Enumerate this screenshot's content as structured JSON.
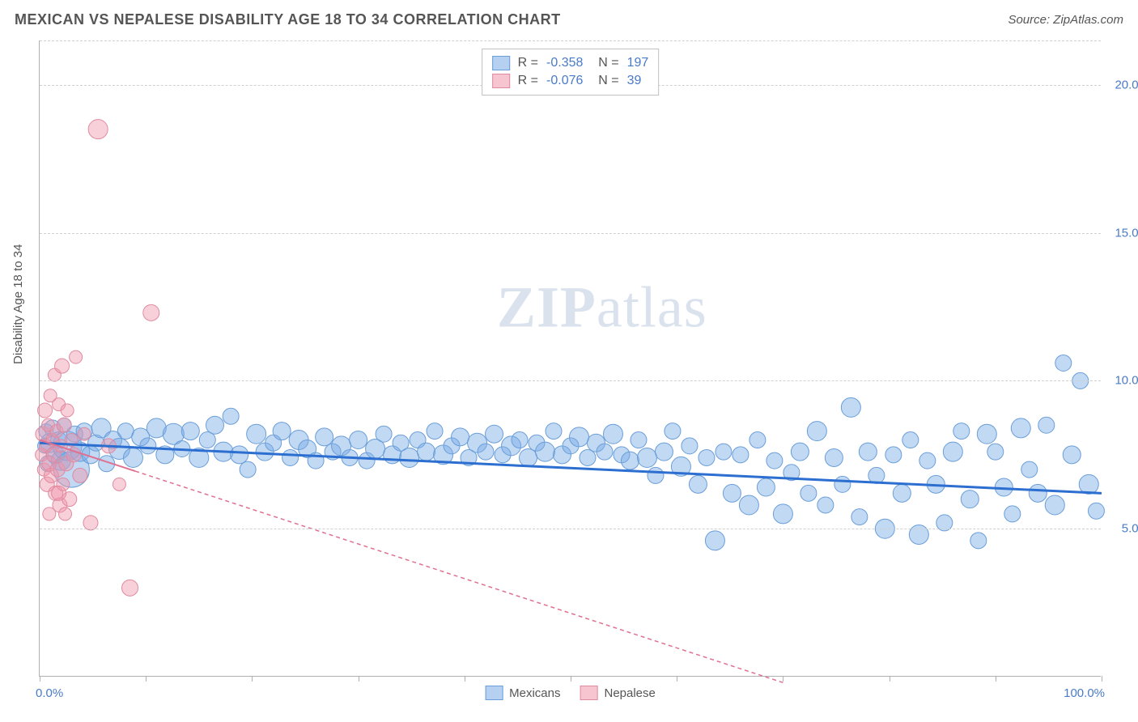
{
  "header": {
    "title": "MEXICAN VS NEPALESE DISABILITY AGE 18 TO 34 CORRELATION CHART",
    "source": "Source: ZipAtlas.com"
  },
  "watermark": {
    "part1": "ZIP",
    "part2": "atlas"
  },
  "chart": {
    "type": "scatter",
    "ylabel": "Disability Age 18 to 34",
    "background_color": "#ffffff",
    "grid_color": "#d0d0d0",
    "axis_color": "#b0b0b0",
    "tick_label_color": "#4a7bc8",
    "tick_fontsize": 15,
    "xlim": [
      0,
      100
    ],
    "ylim": [
      0,
      21.5
    ],
    "x_tick_positions": [
      0,
      10,
      20,
      30,
      40,
      50,
      60,
      70,
      80,
      90,
      100
    ],
    "x_tick_labels_shown": {
      "0": "0.0%",
      "100": "100.0%"
    },
    "y_ticks": [
      {
        "v": 5,
        "label": "5.0%"
      },
      {
        "v": 10,
        "label": "10.0%"
      },
      {
        "v": 15,
        "label": "15.0%"
      },
      {
        "v": 20,
        "label": "20.0%"
      }
    ],
    "series": [
      {
        "name": "Mexicans",
        "color_fill": "rgba(120,170,230,0.45)",
        "color_stroke": "#6a9ed8",
        "trend_color": "#2d6fd0",
        "trend_width": 3,
        "trend_dash": "none",
        "trend": {
          "x1": 0,
          "y1": 7.9,
          "x2": 100,
          "y2": 6.2
        },
        "legend_top": {
          "R": "-0.358",
          "N": "197"
        },
        "points": [
          {
            "x": 0.5,
            "y": 7.8,
            "r": 9
          },
          {
            "x": 0.6,
            "y": 8.3,
            "r": 9
          },
          {
            "x": 0.8,
            "y": 7.2,
            "r": 10
          },
          {
            "x": 1.0,
            "y": 7.9,
            "r": 12
          },
          {
            "x": 1.2,
            "y": 8.4,
            "r": 10
          },
          {
            "x": 1.5,
            "y": 7.5,
            "r": 11
          },
          {
            "x": 1.8,
            "y": 8.0,
            "r": 10
          },
          {
            "x": 2.0,
            "y": 7.3,
            "r": 12
          },
          {
            "x": 2.3,
            "y": 8.5,
            "r": 9
          },
          {
            "x": 2.6,
            "y": 7.8,
            "r": 18
          },
          {
            "x": 3.0,
            "y": 7.0,
            "r": 22
          },
          {
            "x": 3.3,
            "y": 8.2,
            "r": 10
          },
          {
            "x": 3.8,
            "y": 7.6,
            "r": 12
          },
          {
            "x": 4.2,
            "y": 8.3,
            "r": 10
          },
          {
            "x": 4.8,
            "y": 7.5,
            "r": 11
          },
          {
            "x": 5.3,
            "y": 7.9,
            "r": 10
          },
          {
            "x": 5.8,
            "y": 8.4,
            "r": 12
          },
          {
            "x": 6.3,
            "y": 7.2,
            "r": 10
          },
          {
            "x": 6.9,
            "y": 8.0,
            "r": 11
          },
          {
            "x": 7.5,
            "y": 7.7,
            "r": 13
          },
          {
            "x": 8.1,
            "y": 8.3,
            "r": 10
          },
          {
            "x": 8.8,
            "y": 7.4,
            "r": 12
          },
          {
            "x": 9.5,
            "y": 8.1,
            "r": 11
          },
          {
            "x": 10.2,
            "y": 7.8,
            "r": 10
          },
          {
            "x": 11.0,
            "y": 8.4,
            "r": 12
          },
          {
            "x": 11.8,
            "y": 7.5,
            "r": 11
          },
          {
            "x": 12.6,
            "y": 8.2,
            "r": 13
          },
          {
            "x": 13.4,
            "y": 7.7,
            "r": 10
          },
          {
            "x": 14.2,
            "y": 8.3,
            "r": 11
          },
          {
            "x": 15.0,
            "y": 7.4,
            "r": 12
          },
          {
            "x": 15.8,
            "y": 8.0,
            "r": 10
          },
          {
            "x": 16.5,
            "y": 8.5,
            "r": 11
          },
          {
            "x": 17.3,
            "y": 7.6,
            "r": 12
          },
          {
            "x": 18.0,
            "y": 8.8,
            "r": 10
          },
          {
            "x": 18.8,
            "y": 7.5,
            "r": 11
          },
          {
            "x": 19.6,
            "y": 7.0,
            "r": 10
          },
          {
            "x": 20.4,
            "y": 8.2,
            "r": 12
          },
          {
            "x": 21.2,
            "y": 7.6,
            "r": 11
          },
          {
            "x": 22.0,
            "y": 7.9,
            "r": 10
          },
          {
            "x": 22.8,
            "y": 8.3,
            "r": 11
          },
          {
            "x": 23.6,
            "y": 7.4,
            "r": 10
          },
          {
            "x": 24.4,
            "y": 8.0,
            "r": 12
          },
          {
            "x": 25.2,
            "y": 7.7,
            "r": 11
          },
          {
            "x": 26.0,
            "y": 7.3,
            "r": 10
          },
          {
            "x": 26.8,
            "y": 8.1,
            "r": 11
          },
          {
            "x": 27.6,
            "y": 7.6,
            "r": 10
          },
          {
            "x": 28.4,
            "y": 7.8,
            "r": 12
          },
          {
            "x": 29.2,
            "y": 7.4,
            "r": 10
          },
          {
            "x": 30.0,
            "y": 8.0,
            "r": 11
          },
          {
            "x": 30.8,
            "y": 7.3,
            "r": 10
          },
          {
            "x": 31.6,
            "y": 7.7,
            "r": 12
          },
          {
            "x": 32.4,
            "y": 8.2,
            "r": 10
          },
          {
            "x": 33.2,
            "y": 7.5,
            "r": 11
          },
          {
            "x": 34.0,
            "y": 7.9,
            "r": 10
          },
          {
            "x": 34.8,
            "y": 7.4,
            "r": 12
          },
          {
            "x": 35.6,
            "y": 8.0,
            "r": 10
          },
          {
            "x": 36.4,
            "y": 7.6,
            "r": 11
          },
          {
            "x": 37.2,
            "y": 8.3,
            "r": 10
          },
          {
            "x": 38.0,
            "y": 7.5,
            "r": 12
          },
          {
            "x": 38.8,
            "y": 7.8,
            "r": 10
          },
          {
            "x": 39.6,
            "y": 8.1,
            "r": 11
          },
          {
            "x": 40.4,
            "y": 7.4,
            "r": 10
          },
          {
            "x": 41.2,
            "y": 7.9,
            "r": 12
          },
          {
            "x": 42.0,
            "y": 7.6,
            "r": 10
          },
          {
            "x": 42.8,
            "y": 8.2,
            "r": 11
          },
          {
            "x": 43.6,
            "y": 7.5,
            "r": 10
          },
          {
            "x": 44.4,
            "y": 7.8,
            "r": 12
          },
          {
            "x": 45.2,
            "y": 8.0,
            "r": 10
          },
          {
            "x": 46.0,
            "y": 7.4,
            "r": 11
          },
          {
            "x": 46.8,
            "y": 7.9,
            "r": 10
          },
          {
            "x": 47.6,
            "y": 7.6,
            "r": 12
          },
          {
            "x": 48.4,
            "y": 8.3,
            "r": 10
          },
          {
            "x": 49.2,
            "y": 7.5,
            "r": 11
          },
          {
            "x": 50.0,
            "y": 7.8,
            "r": 10
          },
          {
            "x": 50.8,
            "y": 8.1,
            "r": 12
          },
          {
            "x": 51.6,
            "y": 7.4,
            "r": 10
          },
          {
            "x": 52.4,
            "y": 7.9,
            "r": 11
          },
          {
            "x": 53.2,
            "y": 7.6,
            "r": 10
          },
          {
            "x": 54.0,
            "y": 8.2,
            "r": 12
          },
          {
            "x": 54.8,
            "y": 7.5,
            "r": 10
          },
          {
            "x": 55.6,
            "y": 7.3,
            "r": 11
          },
          {
            "x": 56.4,
            "y": 8.0,
            "r": 10
          },
          {
            "x": 57.2,
            "y": 7.4,
            "r": 12
          },
          {
            "x": 58.0,
            "y": 6.8,
            "r": 10
          },
          {
            "x": 58.8,
            "y": 7.6,
            "r": 11
          },
          {
            "x": 59.6,
            "y": 8.3,
            "r": 10
          },
          {
            "x": 60.4,
            "y": 7.1,
            "r": 12
          },
          {
            "x": 61.2,
            "y": 7.8,
            "r": 10
          },
          {
            "x": 62.0,
            "y": 6.5,
            "r": 11
          },
          {
            "x": 62.8,
            "y": 7.4,
            "r": 10
          },
          {
            "x": 63.6,
            "y": 4.6,
            "r": 12
          },
          {
            "x": 64.4,
            "y": 7.6,
            "r": 10
          },
          {
            "x": 65.2,
            "y": 6.2,
            "r": 11
          },
          {
            "x": 66.0,
            "y": 7.5,
            "r": 10
          },
          {
            "x": 66.8,
            "y": 5.8,
            "r": 12
          },
          {
            "x": 67.6,
            "y": 8.0,
            "r": 10
          },
          {
            "x": 68.4,
            "y": 6.4,
            "r": 11
          },
          {
            "x": 69.2,
            "y": 7.3,
            "r": 10
          },
          {
            "x": 70.0,
            "y": 5.5,
            "r": 12
          },
          {
            "x": 70.8,
            "y": 6.9,
            "r": 10
          },
          {
            "x": 71.6,
            "y": 7.6,
            "r": 11
          },
          {
            "x": 72.4,
            "y": 6.2,
            "r": 10
          },
          {
            "x": 73.2,
            "y": 8.3,
            "r": 12
          },
          {
            "x": 74.0,
            "y": 5.8,
            "r": 10
          },
          {
            "x": 74.8,
            "y": 7.4,
            "r": 11
          },
          {
            "x": 75.6,
            "y": 6.5,
            "r": 10
          },
          {
            "x": 76.4,
            "y": 9.1,
            "r": 12
          },
          {
            "x": 77.2,
            "y": 5.4,
            "r": 10
          },
          {
            "x": 78.0,
            "y": 7.6,
            "r": 11
          },
          {
            "x": 78.8,
            "y": 6.8,
            "r": 10
          },
          {
            "x": 79.6,
            "y": 5.0,
            "r": 12
          },
          {
            "x": 80.4,
            "y": 7.5,
            "r": 10
          },
          {
            "x": 81.2,
            "y": 6.2,
            "r": 11
          },
          {
            "x": 82.0,
            "y": 8.0,
            "r": 10
          },
          {
            "x": 82.8,
            "y": 4.8,
            "r": 12
          },
          {
            "x": 83.6,
            "y": 7.3,
            "r": 10
          },
          {
            "x": 84.4,
            "y": 6.5,
            "r": 11
          },
          {
            "x": 85.2,
            "y": 5.2,
            "r": 10
          },
          {
            "x": 86.0,
            "y": 7.6,
            "r": 12
          },
          {
            "x": 86.8,
            "y": 8.3,
            "r": 10
          },
          {
            "x": 87.6,
            "y": 6.0,
            "r": 11
          },
          {
            "x": 88.4,
            "y": 4.6,
            "r": 10
          },
          {
            "x": 89.2,
            "y": 8.2,
            "r": 12
          },
          {
            "x": 90.0,
            "y": 7.6,
            "r": 10
          },
          {
            "x": 90.8,
            "y": 6.4,
            "r": 11
          },
          {
            "x": 91.6,
            "y": 5.5,
            "r": 10
          },
          {
            "x": 92.4,
            "y": 8.4,
            "r": 12
          },
          {
            "x": 93.2,
            "y": 7.0,
            "r": 10
          },
          {
            "x": 94.0,
            "y": 6.2,
            "r": 11
          },
          {
            "x": 94.8,
            "y": 8.5,
            "r": 10
          },
          {
            "x": 95.6,
            "y": 5.8,
            "r": 12
          },
          {
            "x": 96.4,
            "y": 10.6,
            "r": 10
          },
          {
            "x": 97.2,
            "y": 7.5,
            "r": 11
          },
          {
            "x": 98.0,
            "y": 10.0,
            "r": 10
          },
          {
            "x": 98.8,
            "y": 6.5,
            "r": 12
          },
          {
            "x": 99.5,
            "y": 5.6,
            "r": 10
          }
        ]
      },
      {
        "name": "Nepalese",
        "color_fill": "rgba(240,150,170,0.45)",
        "color_stroke": "#e08aa0",
        "trend_color": "#e07090",
        "trend_width": 1.5,
        "trend_dash": "5,4",
        "trend_solid_to_x": 9,
        "trend": {
          "x1": 0,
          "y1": 8.0,
          "x2": 70,
          "y2": -0.2
        },
        "legend_top": {
          "R": "-0.076",
          "N": "39"
        },
        "points": [
          {
            "x": 0.2,
            "y": 7.5,
            "r": 8
          },
          {
            "x": 0.3,
            "y": 8.2,
            "r": 9
          },
          {
            "x": 0.4,
            "y": 7.0,
            "r": 8
          },
          {
            "x": 0.5,
            "y": 9.0,
            "r": 9
          },
          {
            "x": 0.6,
            "y": 7.8,
            "r": 8
          },
          {
            "x": 0.7,
            "y": 6.5,
            "r": 9
          },
          {
            "x": 0.8,
            "y": 8.5,
            "r": 8
          },
          {
            "x": 0.9,
            "y": 7.2,
            "r": 9
          },
          {
            "x": 1.0,
            "y": 9.5,
            "r": 8
          },
          {
            "x": 1.1,
            "y": 6.8,
            "r": 9
          },
          {
            "x": 1.2,
            "y": 8.0,
            "r": 8
          },
          {
            "x": 1.3,
            "y": 7.5,
            "r": 9
          },
          {
            "x": 1.4,
            "y": 10.2,
            "r": 8
          },
          {
            "x": 1.5,
            "y": 6.2,
            "r": 9
          },
          {
            "x": 1.6,
            "y": 8.3,
            "r": 8
          },
          {
            "x": 1.7,
            "y": 7.0,
            "r": 9
          },
          {
            "x": 1.8,
            "y": 9.2,
            "r": 8
          },
          {
            "x": 1.9,
            "y": 5.8,
            "r": 9
          },
          {
            "x": 2.0,
            "y": 7.8,
            "r": 8
          },
          {
            "x": 2.1,
            "y": 10.5,
            "r": 9
          },
          {
            "x": 2.2,
            "y": 6.5,
            "r": 8
          },
          {
            "x": 2.3,
            "y": 8.5,
            "r": 9
          },
          {
            "x": 2.4,
            "y": 5.5,
            "r": 8
          },
          {
            "x": 2.5,
            "y": 7.2,
            "r": 9
          },
          {
            "x": 2.6,
            "y": 9.0,
            "r": 8
          },
          {
            "x": 2.8,
            "y": 6.0,
            "r": 9
          },
          {
            "x": 3.0,
            "y": 8.0,
            "r": 8
          },
          {
            "x": 3.2,
            "y": 7.5,
            "r": 9
          },
          {
            "x": 3.4,
            "y": 10.8,
            "r": 8
          },
          {
            "x": 3.8,
            "y": 6.8,
            "r": 9
          },
          {
            "x": 4.2,
            "y": 8.2,
            "r": 8
          },
          {
            "x": 4.8,
            "y": 5.2,
            "r": 9
          },
          {
            "x": 5.5,
            "y": 18.5,
            "r": 12
          },
          {
            "x": 6.5,
            "y": 7.8,
            "r": 9
          },
          {
            "x": 7.5,
            "y": 6.5,
            "r": 8
          },
          {
            "x": 8.5,
            "y": 3.0,
            "r": 10
          },
          {
            "x": 10.5,
            "y": 12.3,
            "r": 10
          },
          {
            "x": 1.8,
            "y": 6.2,
            "r": 9
          },
          {
            "x": 0.9,
            "y": 5.5,
            "r": 8
          }
        ]
      }
    ],
    "legend_bottom": [
      {
        "label": "Mexicans",
        "fill": "rgba(120,170,230,0.55)",
        "stroke": "#6a9ed8"
      },
      {
        "label": "Nepalese",
        "fill": "rgba(240,150,170,0.55)",
        "stroke": "#e08aa0"
      }
    ]
  }
}
